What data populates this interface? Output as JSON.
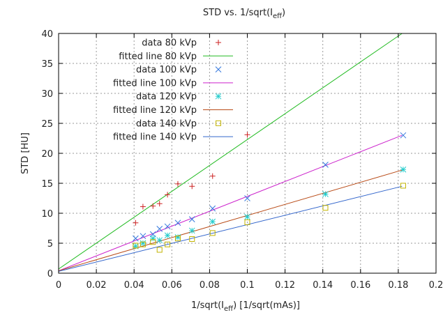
{
  "chart_data": {
    "type": "scatter",
    "title": "STD vs. 1/sqrt(I",
    "title_sub": "eff",
    "title_end": ")",
    "xlabel": "1/sqrt(I",
    "xlabel_sub": "eff",
    "xlabel_end": ") [1/sqrt(mAs)]",
    "ylabel": "STD [HU]",
    "xlim": [
      0,
      0.2
    ],
    "ylim": [
      0,
      40
    ],
    "x_ticks": [
      "0",
      "0.02",
      "0.04",
      "0.06",
      "0.08",
      "0.1",
      "0.12",
      "0.14",
      "0.16",
      "0.18",
      "0.2"
    ],
    "y_ticks": [
      "0",
      "5",
      "10",
      "15",
      "20",
      "25",
      "30",
      "35",
      "40"
    ],
    "grid": true,
    "legend_position": "top-left",
    "series": [
      {
        "name": "data 80 kVp",
        "kind": "points",
        "marker": "plus",
        "color": "#cc2222",
        "x": [
          0.0408,
          0.0447,
          0.05,
          0.0535,
          0.0577,
          0.0632,
          0.0707,
          0.0816,
          0.1
        ],
        "y": [
          8.4,
          11.1,
          11.2,
          11.6,
          13.1,
          14.9,
          14.5,
          16.2,
          23.1
        ]
      },
      {
        "name": "fitted line 80 kVp",
        "kind": "line",
        "color": "#22bb22",
        "x": [
          0,
          0.182
        ],
        "y": [
          0.7,
          40
        ]
      },
      {
        "name": "data 100 kVp",
        "kind": "points",
        "marker": "cross",
        "color": "#3377dd",
        "x": [
          0.0408,
          0.0447,
          0.05,
          0.0535,
          0.0577,
          0.0632,
          0.0707,
          0.0816,
          0.1,
          0.1414,
          0.1826
        ],
        "y": [
          5.8,
          6.2,
          6.5,
          7.4,
          7.8,
          8.4,
          9.0,
          10.8,
          12.5,
          18.1,
          23.0
        ]
      },
      {
        "name": "fitted line 100 kVp",
        "kind": "line",
        "color": "#cc22cc",
        "x": [
          0,
          0.182
        ],
        "y": [
          0.4,
          23.0
        ]
      },
      {
        "name": "data 120 kVp",
        "kind": "points",
        "marker": "star",
        "color": "#22cccc",
        "x": [
          0.0408,
          0.0447,
          0.05,
          0.0535,
          0.0577,
          0.0632,
          0.0707,
          0.0816,
          0.1,
          0.1414,
          0.1826
        ],
        "y": [
          4.5,
          5.0,
          5.8,
          5.5,
          6.3,
          6.0,
          7.1,
          8.6,
          9.4,
          13.2,
          17.3
        ]
      },
      {
        "name": "fitted line 120 kVp",
        "kind": "line",
        "color": "#b84a16",
        "x": [
          0,
          0.182
        ],
        "y": [
          0.4,
          17.2
        ]
      },
      {
        "name": "data 140 kVp",
        "kind": "points",
        "marker": "square",
        "color": "#c2b300",
        "x": [
          0.0408,
          0.0447,
          0.05,
          0.0535,
          0.0577,
          0.0632,
          0.0707,
          0.0816,
          0.1,
          0.1414,
          0.1826
        ],
        "y": [
          4.6,
          4.8,
          5.2,
          3.9,
          4.8,
          5.8,
          5.7,
          6.7,
          8.5,
          10.9,
          14.6
        ]
      },
      {
        "name": "fitted line 140 kVp",
        "kind": "line",
        "color": "#3366cc",
        "x": [
          0,
          0.182
        ],
        "y": [
          0.3,
          14.5
        ]
      }
    ]
  }
}
